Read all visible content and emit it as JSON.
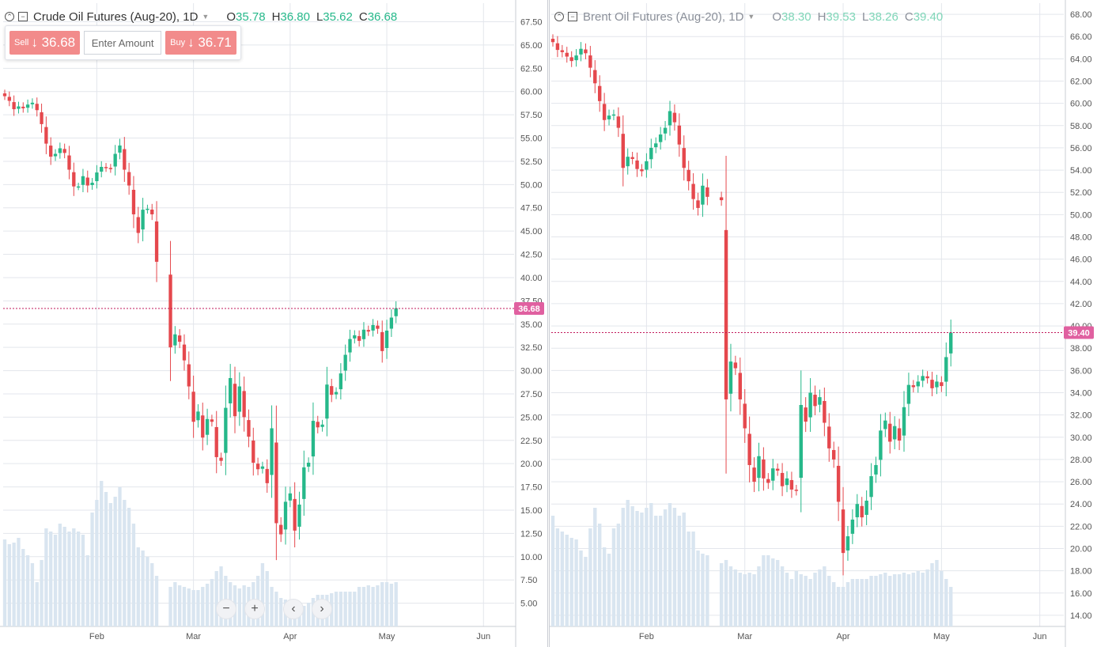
{
  "colors": {
    "up": "#26b88a",
    "down": "#e5484d",
    "volume": "#d9e5f0",
    "grid": "#e3e6ec",
    "price_line": "#c2185b",
    "price_tag": "#e060a0",
    "trade_button": "#f28b8b"
  },
  "toolbar": {
    "sell_label": "Sell",
    "sell_price": "36.68",
    "buy_label": "Buy",
    "buy_price": "36.71",
    "amount_placeholder": "Enter Amount",
    "arrow": "↓"
  },
  "nav_buttons": [
    {
      "icon": "minus-icon",
      "glyph": "−"
    },
    {
      "icon": "plus-icon",
      "glyph": "+"
    },
    {
      "icon": "chevron-left-icon",
      "glyph": "‹"
    },
    {
      "icon": "chevron-right-icon",
      "glyph": "›"
    }
  ],
  "chart_data": [
    {
      "type": "candlestick",
      "title": "Crude Oil Futures (Aug-20), 1D",
      "ohlc_labels": {
        "O": "35.78",
        "H": "36.80",
        "L": "35.62",
        "C": "36.68"
      },
      "last_price": "36.68",
      "last_value": 36.68,
      "x_tick_labels": [
        "Feb",
        "Mar",
        "Apr",
        "May",
        "Jun"
      ],
      "x_tick_indices": [
        20,
        41,
        62,
        83,
        104
      ],
      "y_ticks": [
        5,
        7.5,
        10,
        12.5,
        15,
        17.5,
        20,
        22.5,
        25,
        27.5,
        30,
        32.5,
        35,
        37.5,
        40,
        42.5,
        45,
        47.5,
        50,
        52.5,
        55,
        57.5,
        60,
        62.5,
        65,
        67.5
      ],
      "y_tick_labels": [
        "5.00",
        "7.50",
        "10.00",
        "12.50",
        "15.00",
        "17.50",
        "20.00",
        "22.50",
        "25.00",
        "27.50",
        "30.00",
        "32.50",
        "35.00",
        "37.50",
        "40.00",
        "42.50",
        "45.00",
        "47.50",
        "50.00",
        "52.50",
        "55.00",
        "57.50",
        "60.00",
        "62.50",
        "65.00",
        "67.50"
      ],
      "ylim": [
        2.5,
        69.5
      ],
      "closes": [
        59.5,
        59.0,
        58.1,
        58.4,
        58.2,
        58.6,
        58.8,
        58.0,
        56.5,
        54.4,
        53.0,
        53.3,
        53.9,
        53.4,
        51.6,
        49.8,
        49.8,
        50.9,
        49.9,
        50.2,
        51.3,
        51.9,
        51.8,
        51.7,
        53.3,
        54.2,
        51.6,
        49.9,
        46.8,
        44.8,
        47.3,
        47.4,
        46.8,
        41.7,
        32.5,
        33.9,
        33.1,
        31.1,
        28.3,
        24.5,
        25.6,
        22.8,
        24.8,
        24.5,
        20.7,
        20.3,
        26.0,
        29.2,
        25.1,
        28.3,
        25.0,
        22.9,
        20.1,
        19.4,
        19.7,
        17.9,
        23.8,
        13.6,
        12.4,
        15.9,
        16.8,
        12.8,
        15.6,
        19.6,
        20.1,
        24.6,
        23.9,
        24.2,
        28.5,
        27.4,
        27.7,
        29.7,
        31.7,
        33.4,
        33.8,
        33.2,
        34.4,
        34.2,
        34.9,
        34.5,
        32.1,
        34.3,
        35.7,
        36.7
      ],
      "volume_relative": [
        0.55,
        0.52,
        0.53,
        0.56,
        0.49,
        0.45,
        0.4,
        0.28,
        0.42,
        0.62,
        0.6,
        0.58,
        0.65,
        0.63,
        0.6,
        0.62,
        0.6,
        0.58,
        0.45,
        0.72,
        0.8,
        0.92,
        0.85,
        0.78,
        0.82,
        0.88,
        0.8,
        0.75,
        0.65,
        0.5,
        0.48,
        0.44,
        0.4,
        0.32,
        0.25,
        0.28,
        0.26,
        0.25,
        0.24,
        0.23,
        0.23,
        0.25,
        0.27,
        0.3,
        0.35,
        0.38,
        0.32,
        0.28,
        0.26,
        0.24,
        0.26,
        0.25,
        0.28,
        0.32,
        0.4,
        0.35,
        0.25,
        0.22,
        0.18,
        0.17,
        0.17,
        0.16,
        0.14,
        0.13,
        0.15,
        0.18,
        0.2,
        0.2,
        0.2,
        0.21,
        0.22,
        0.22,
        0.22,
        0.22,
        0.22,
        0.25,
        0.25,
        0.26,
        0.25,
        0.26,
        0.28,
        0.28,
        0.27,
        0.28
      ]
    },
    {
      "type": "candlestick",
      "title": "Brent Oil Futures (Aug-20), 1D",
      "ohlc_labels": {
        "O": "38.30",
        "H": "39.53",
        "L": "38.26",
        "C": "39.40"
      },
      "last_price": "39.40",
      "last_value": 39.4,
      "x_tick_labels": [
        "Feb",
        "Mar",
        "Apr",
        "May",
        "Jun"
      ],
      "x_tick_indices": [
        20,
        41,
        62,
        83,
        104
      ],
      "y_ticks": [
        14,
        16,
        18,
        20,
        22,
        24,
        26,
        28,
        30,
        32,
        34,
        36,
        38,
        40,
        42,
        44,
        46,
        48,
        50,
        52,
        54,
        56,
        58,
        60,
        62,
        64,
        66,
        68
      ],
      "y_tick_labels": [
        "14.00",
        "16.00",
        "18.00",
        "20.00",
        "22.00",
        "24.00",
        "26.00",
        "28.00",
        "30.00",
        "32.00",
        "34.00",
        "36.00",
        "38.00",
        "40.00",
        "42.00",
        "44.00",
        "46.00",
        "48.00",
        "50.00",
        "52.00",
        "54.00",
        "56.00",
        "58.00",
        "60.00",
        "62.00",
        "64.00",
        "66.00",
        "68.00"
      ],
      "ylim": [
        13,
        69
      ],
      "closes": [
        65.5,
        64.8,
        64.6,
        64.2,
        63.8,
        64.3,
        64.9,
        64.5,
        63.2,
        61.8,
        60.2,
        58.5,
        58.9,
        59.0,
        57.8,
        54.2,
        55.2,
        55.0,
        54.1,
        53.9,
        54.8,
        56.0,
        56.4,
        57.2,
        57.8,
        59.3,
        58.3,
        56.3,
        54.2,
        53.0,
        51.4,
        50.6,
        52.6,
        51.6,
        51.3,
        33.4,
        36.8,
        36.2,
        33.4,
        30.8,
        27.5,
        26.0,
        28.3,
        26.3,
        25.9,
        27.2,
        27.0,
        25.6,
        26.3,
        25.3,
        25.2,
        32.9,
        31.4,
        34.0,
        32.8,
        33.6,
        31.3,
        29.0,
        28.0,
        24.2,
        19.6,
        21.1,
        22.6,
        24.0,
        22.8,
        24.3,
        26.5,
        27.5,
        30.6,
        31.5,
        29.6,
        31.0,
        29.7,
        32.7,
        34.7,
        34.5,
        35.0,
        35.5,
        35.3,
        34.4,
        35.0,
        34.6,
        37.2,
        39.4
      ],
      "volume_relative": [
        0.7,
        0.62,
        0.6,
        0.58,
        0.56,
        0.55,
        0.48,
        0.44,
        0.62,
        0.75,
        0.65,
        0.5,
        0.46,
        0.62,
        0.65,
        0.75,
        0.8,
        0.76,
        0.73,
        0.72,
        0.75,
        0.78,
        0.7,
        0.7,
        0.74,
        0.78,
        0.75,
        0.7,
        0.72,
        0.6,
        0.6,
        0.48,
        0.46,
        0.45,
        0.4,
        0.42,
        0.38,
        0.36,
        0.34,
        0.33,
        0.34,
        0.33,
        0.38,
        0.45,
        0.45,
        0.43,
        0.42,
        0.38,
        0.34,
        0.3,
        0.35,
        0.33,
        0.32,
        0.3,
        0.34,
        0.36,
        0.38,
        0.32,
        0.28,
        0.25,
        0.25,
        0.28,
        0.3,
        0.3,
        0.3,
        0.3,
        0.32,
        0.32,
        0.33,
        0.34,
        0.32,
        0.33,
        0.33,
        0.34,
        0.33,
        0.34,
        0.35,
        0.34,
        0.36,
        0.4,
        0.42,
        0.35,
        0.3,
        0.25
      ]
    }
  ]
}
